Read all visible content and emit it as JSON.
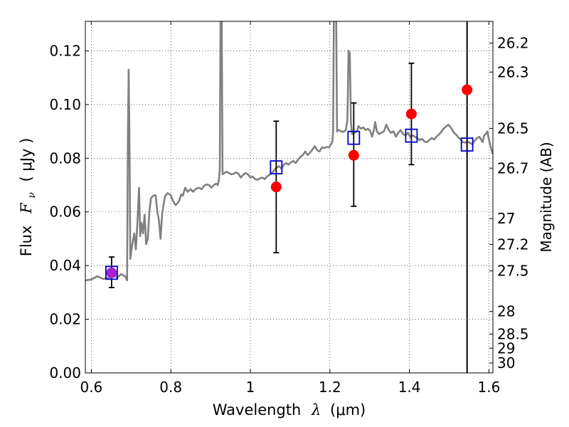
{
  "chart_data": {
    "type": "scatter",
    "xlabel_prefix": "Wavelength",
    "xlabel_symbol": "λ",
    "xlabel_unit": "(μm)",
    "ylabel_prefix": "Flux",
    "ylabel_symbol": "F",
    "ylabel_symbol_sub": "ν",
    "ylabel_unit": "( μJy )",
    "y2label": "Magnitude (AB)",
    "xlim": [
      0.585,
      1.61
    ],
    "ylim": [
      0.0,
      0.131
    ],
    "grid": true,
    "grid_style": "dotted",
    "xticks": [
      {
        "value": 0.6,
        "label": "0.6"
      },
      {
        "value": 0.8,
        "label": "0.8"
      },
      {
        "value": 1.0,
        "label": "1"
      },
      {
        "value": 1.2,
        "label": "1.2"
      },
      {
        "value": 1.4,
        "label": "1.4"
      },
      {
        "value": 1.6,
        "label": "1.6"
      }
    ],
    "yticks": [
      {
        "value": 0.0,
        "label": "0.00"
      },
      {
        "value": 0.02,
        "label": "0.02"
      },
      {
        "value": 0.04,
        "label": "0.04"
      },
      {
        "value": 0.06,
        "label": "0.06"
      },
      {
        "value": 0.08,
        "label": "0.08"
      },
      {
        "value": 0.1,
        "label": "0.10"
      },
      {
        "value": 0.12,
        "label": "0.12"
      }
    ],
    "y2ticks": [
      {
        "flux": 0.1229,
        "label": "26.2"
      },
      {
        "flux": 0.1121,
        "label": "26.3"
      },
      {
        "flux": 0.0911,
        "label": "26.5"
      },
      {
        "flux": 0.0763,
        "label": "26.7"
      },
      {
        "flux": 0.0575,
        "label": "27"
      },
      {
        "flux": 0.0479,
        "label": "27.2"
      },
      {
        "flux": 0.038,
        "label": "27.5"
      },
      {
        "flux": 0.0229,
        "label": "28"
      },
      {
        "flux": 0.0145,
        "label": "28.5"
      },
      {
        "flux": 0.0092,
        "label": "29"
      },
      {
        "flux": 0.0037,
        "label": "30"
      }
    ],
    "vertical_line_x": 1.545,
    "series": [
      {
        "kind": "model_spectrum",
        "color": "#808080",
        "points": [
          [
            0.585,
            0.0345
          ],
          [
            0.6,
            0.0348
          ],
          [
            0.615,
            0.036
          ],
          [
            0.63,
            0.035
          ],
          [
            0.645,
            0.0355
          ],
          [
            0.655,
            0.0368
          ],
          [
            0.665,
            0.0355
          ],
          [
            0.675,
            0.0368
          ],
          [
            0.685,
            0.036
          ],
          [
            0.69,
            0.0345
          ],
          [
            0.692,
            0.088
          ],
          [
            0.694,
            0.113
          ],
          [
            0.696,
            0.085
          ],
          [
            0.698,
            0.0425
          ],
          [
            0.702,
            0.047
          ],
          [
            0.708,
            0.052
          ],
          [
            0.712,
            0.046
          ],
          [
            0.716,
            0.056
          ],
          [
            0.72,
            0.069
          ],
          [
            0.723,
            0.051
          ],
          [
            0.726,
            0.056
          ],
          [
            0.73,
            0.052
          ],
          [
            0.734,
            0.059
          ],
          [
            0.738,
            0.048
          ],
          [
            0.742,
            0.05
          ],
          [
            0.746,
            0.06
          ],
          [
            0.75,
            0.065
          ],
          [
            0.755,
            0.066
          ],
          [
            0.762,
            0.0662
          ],
          [
            0.766,
            0.06
          ],
          [
            0.77,
            0.057
          ],
          [
            0.774,
            0.05
          ],
          [
            0.778,
            0.059
          ],
          [
            0.782,
            0.063
          ],
          [
            0.786,
            0.066
          ],
          [
            0.792,
            0.067
          ],
          [
            0.8,
            0.0662
          ],
          [
            0.806,
            0.064
          ],
          [
            0.812,
            0.0625
          ],
          [
            0.82,
            0.0638
          ],
          [
            0.826,
            0.0665
          ],
          [
            0.83,
            0.066
          ],
          [
            0.836,
            0.069
          ],
          [
            0.842,
            0.0675
          ],
          [
            0.85,
            0.0685
          ],
          [
            0.856,
            0.0675
          ],
          [
            0.862,
            0.0685
          ],
          [
            0.87,
            0.069
          ],
          [
            0.878,
            0.0685
          ],
          [
            0.884,
            0.0698
          ],
          [
            0.89,
            0.0702
          ],
          [
            0.896,
            0.07
          ],
          [
            0.902,
            0.069
          ],
          [
            0.908,
            0.07
          ],
          [
            0.914,
            0.0705
          ],
          [
            0.918,
            0.07
          ],
          [
            0.921,
            0.072
          ],
          [
            0.923,
            0.076
          ],
          [
            0.925,
            0.132
          ],
          [
            0.928,
            0.132
          ],
          [
            0.93,
            0.074
          ],
          [
            0.935,
            0.0745
          ],
          [
            0.94,
            0.075
          ],
          [
            0.946,
            0.0745
          ],
          [
            0.952,
            0.074
          ],
          [
            0.958,
            0.0742
          ],
          [
            0.964,
            0.0748
          ],
          [
            0.97,
            0.0742
          ],
          [
            0.976,
            0.0728
          ],
          [
            0.982,
            0.0738
          ],
          [
            0.988,
            0.0745
          ],
          [
            0.994,
            0.074
          ],
          [
            1.0,
            0.0728
          ],
          [
            1.006,
            0.0732
          ],
          [
            1.012,
            0.0722
          ],
          [
            1.018,
            0.072
          ],
          [
            1.024,
            0.0725
          ],
          [
            1.03,
            0.0728
          ],
          [
            1.036,
            0.0722
          ],
          [
            1.042,
            0.0732
          ],
          [
            1.048,
            0.0738
          ],
          [
            1.054,
            0.0745
          ],
          [
            1.06,
            0.0755
          ],
          [
            1.066,
            0.0765
          ],
          [
            1.072,
            0.077
          ],
          [
            1.078,
            0.0762
          ],
          [
            1.084,
            0.0775
          ],
          [
            1.09,
            0.0782
          ],
          [
            1.096,
            0.0776
          ],
          [
            1.102,
            0.0785
          ],
          [
            1.108,
            0.079
          ],
          [
            1.114,
            0.0782
          ],
          [
            1.12,
            0.0795
          ],
          [
            1.126,
            0.0805
          ],
          [
            1.132,
            0.0812
          ],
          [
            1.138,
            0.0825
          ],
          [
            1.144,
            0.0812
          ],
          [
            1.15,
            0.082
          ],
          [
            1.156,
            0.0832
          ],
          [
            1.162,
            0.0845
          ],
          [
            1.168,
            0.083
          ],
          [
            1.174,
            0.0825
          ],
          [
            1.18,
            0.084
          ],
          [
            1.186,
            0.0838
          ],
          [
            1.192,
            0.0842
          ],
          [
            1.198,
            0.084
          ],
          [
            1.202,
            0.085
          ],
          [
            1.206,
            0.086
          ],
          [
            1.208,
            0.09
          ],
          [
            1.21,
            0.132
          ],
          [
            1.216,
            0.132
          ],
          [
            1.218,
            0.09
          ],
          [
            1.222,
            0.0905
          ],
          [
            1.228,
            0.09
          ],
          [
            1.234,
            0.0898
          ],
          [
            1.24,
            0.0905
          ],
          [
            1.244,
            0.094
          ],
          [
            1.247,
            0.12
          ],
          [
            1.25,
            0.119
          ],
          [
            1.253,
            0.093
          ],
          [
            1.256,
            0.089
          ],
          [
            1.262,
            0.0895
          ],
          [
            1.268,
            0.09
          ],
          [
            1.272,
            0.092
          ],
          [
            1.278,
            0.091
          ],
          [
            1.284,
            0.0915
          ],
          [
            1.29,
            0.0905
          ],
          [
            1.296,
            0.091
          ],
          [
            1.302,
            0.09
          ],
          [
            1.306,
            0.088
          ],
          [
            1.31,
            0.09
          ],
          [
            1.314,
            0.0935
          ],
          [
            1.318,
            0.09
          ],
          [
            1.324,
            0.089
          ],
          [
            1.33,
            0.0895
          ],
          [
            1.336,
            0.09
          ],
          [
            1.342,
            0.0925
          ],
          [
            1.348,
            0.0905
          ],
          [
            1.354,
            0.0895
          ],
          [
            1.36,
            0.09
          ],
          [
            1.366,
            0.088
          ],
          [
            1.372,
            0.0895
          ],
          [
            1.378,
            0.0905
          ],
          [
            1.384,
            0.089
          ],
          [
            1.39,
            0.0885
          ],
          [
            1.396,
            0.0895
          ],
          [
            1.402,
            0.088
          ],
          [
            1.408,
            0.0885
          ],
          [
            1.414,
            0.088
          ],
          [
            1.42,
            0.0875
          ],
          [
            1.426,
            0.0868
          ],
          [
            1.432,
            0.0872
          ],
          [
            1.438,
            0.0862
          ],
          [
            1.444,
            0.086
          ],
          [
            1.45,
            0.0868
          ],
          [
            1.456,
            0.0875
          ],
          [
            1.462,
            0.087
          ],
          [
            1.468,
            0.088
          ],
          [
            1.474,
            0.0888
          ],
          [
            1.48,
            0.0898
          ],
          [
            1.486,
            0.091
          ],
          [
            1.492,
            0.0918
          ],
          [
            1.498,
            0.0925
          ],
          [
            1.504,
            0.0915
          ],
          [
            1.508,
            0.0905
          ],
          [
            1.512,
            0.0895
          ],
          [
            1.516,
            0.089
          ],
          [
            1.522,
            0.088
          ],
          [
            1.528,
            0.087
          ],
          [
            1.534,
            0.086
          ],
          [
            1.54,
            0.0858
          ],
          [
            1.546,
            0.0862
          ],
          [
            1.552,
            0.0858
          ],
          [
            1.558,
            0.0852
          ],
          [
            1.564,
            0.0865
          ],
          [
            1.57,
            0.0875
          ],
          [
            1.576,
            0.088
          ],
          [
            1.58,
            0.087
          ],
          [
            1.584,
            0.086
          ],
          [
            1.588,
            0.0885
          ],
          [
            1.592,
            0.089
          ],
          [
            1.596,
            0.09
          ],
          [
            1.6,
            0.087
          ],
          [
            1.605,
            0.084
          ],
          [
            1.61,
            0.0815
          ]
        ]
      },
      {
        "kind": "observed_points_with_errorbars",
        "color": "#ff0000",
        "marker": "circle",
        "points": [
          {
            "x": 1.065,
            "y": 0.0693,
            "lo": 0.0448,
            "hi": 0.0938
          },
          {
            "x": 1.26,
            "y": 0.0811,
            "lo": 0.0621,
            "hi": 0.1006
          },
          {
            "x": 1.405,
            "y": 0.0965,
            "lo": 0.0776,
            "hi": 0.1154
          },
          {
            "x": 1.545,
            "y": 0.1055
          }
        ]
      },
      {
        "kind": "observed_point_purple",
        "color": "#aa22cc",
        "marker": "circle",
        "points": [
          {
            "x": 0.651,
            "y": 0.0373,
            "lo": 0.0318,
            "hi": 0.0432
          }
        ]
      },
      {
        "kind": "model_photometry",
        "color": "#0000cc",
        "marker": "square",
        "points": [
          {
            "x": 0.651,
            "y": 0.0373
          },
          {
            "x": 1.065,
            "y": 0.0766
          },
          {
            "x": 1.26,
            "y": 0.0876
          },
          {
            "x": 1.405,
            "y": 0.0884
          },
          {
            "x": 1.545,
            "y": 0.0851
          }
        ]
      }
    ]
  }
}
